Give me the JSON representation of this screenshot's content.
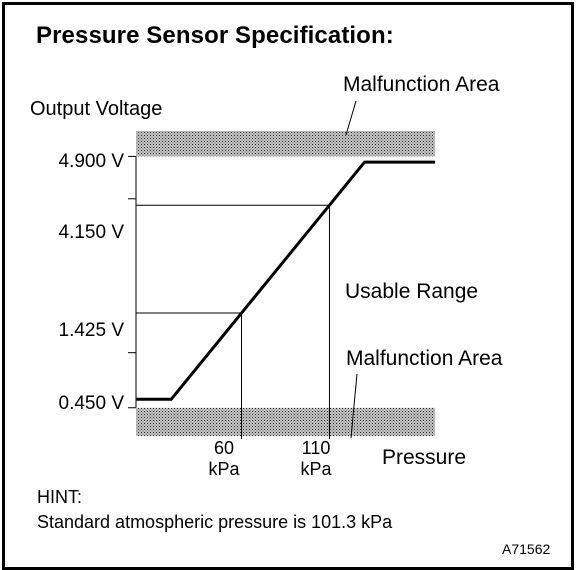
{
  "title": "Pressure Sensor Specification:",
  "chart_data": {
    "type": "line",
    "title": "Pressure Sensor Specification:",
    "ylabel": "Output Voltage",
    "xlabel": "Pressure",
    "y_ticks": [
      "4.900 V",
      "4.150 V",
      "1.425 V",
      "0.450 V"
    ],
    "y_tick_values": [
      4.9,
      4.15,
      1.425,
      0.45
    ],
    "x_ticks": [
      {
        "value": 60,
        "label": "60",
        "unit": "kPa"
      },
      {
        "value": 110,
        "label": "110",
        "unit": "kPa"
      }
    ],
    "series": [
      {
        "points": [
          [
            0,
            0.6
          ],
          [
            20,
            0.6
          ],
          [
            130,
            4.8
          ],
          [
            170,
            4.8
          ]
        ]
      }
    ],
    "ylim": [
      -0.05,
      5.35
    ],
    "xlim": [
      0,
      170
    ],
    "regions": [
      {
        "label": "Malfunction Area",
        "from": 4.9,
        "to": 5.35,
        "position": "top"
      },
      {
        "label": "Usable Range",
        "position": "middle"
      },
      {
        "label": "Malfunction Area",
        "from": -0.05,
        "to": 0.45,
        "position": "bottom"
      }
    ],
    "grid": false
  },
  "hint": {
    "heading": "HINT:",
    "text": "Standard atmospheric pressure is 101.3 kPa"
  },
  "figure_id": "A71562"
}
